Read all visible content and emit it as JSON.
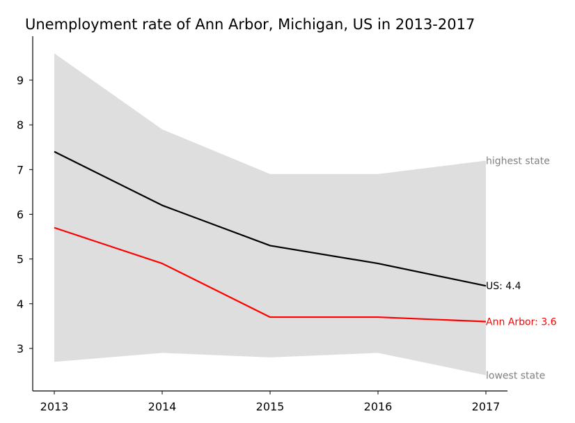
{
  "chart_data": {
    "type": "line",
    "title": "Unemployment rate of Ann Arbor, Michigan, US in 2013-2017",
    "xlabel": "",
    "ylabel": "",
    "x": [
      2013,
      2014,
      2015,
      2016,
      2017
    ],
    "x_tick_labels": [
      "2013",
      "2014",
      "2015",
      "2016",
      "2017"
    ],
    "ylim": [
      2.05,
      9.95
    ],
    "y_ticks": [
      3,
      4,
      5,
      6,
      7,
      8,
      9
    ],
    "y_tick_labels": [
      "3",
      "4",
      "5",
      "6",
      "7",
      "8",
      "9"
    ],
    "grid": false,
    "series": [
      {
        "name": "US",
        "values": [
          7.4,
          6.2,
          5.3,
          4.9,
          4.4
        ],
        "color": "#000000",
        "end_label": "US: 4.4"
      },
      {
        "name": "Ann Arbor",
        "values": [
          5.7,
          4.9,
          3.7,
          3.7,
          3.6
        ],
        "color": "#ff0000",
        "end_label": "Ann Arbor: 3.6"
      }
    ],
    "band": {
      "upper": [
        9.6,
        7.9,
        6.9,
        6.9,
        7.2
      ],
      "lower": [
        2.7,
        2.9,
        2.8,
        2.9,
        2.4
      ],
      "color": "#dedede",
      "upper_label": "highest state",
      "lower_label": "lowest state",
      "label_color": "#808080"
    }
  }
}
